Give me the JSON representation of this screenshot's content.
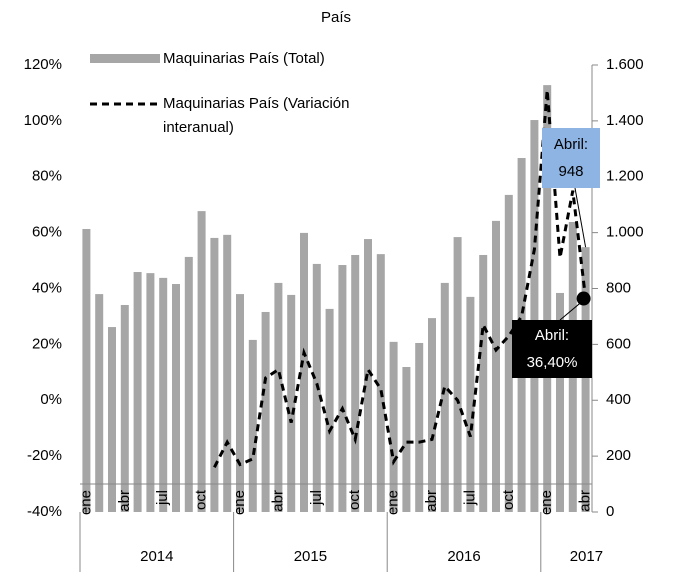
{
  "chart_data": {
    "type": "bar-line",
    "title": "País",
    "categories": [
      "ene",
      null,
      null,
      "abr",
      null,
      null,
      "jul",
      null,
      null,
      "oct",
      null,
      null,
      "ene",
      null,
      null,
      "abr",
      null,
      null,
      "jul",
      null,
      null,
      "oct",
      null,
      null,
      "ene",
      null,
      null,
      "abr",
      null,
      null,
      "jul",
      null,
      null,
      "oct",
      null,
      null,
      "ene",
      null,
      null,
      "abr"
    ],
    "groups": [
      "2014",
      "2015",
      "2016",
      "2017"
    ],
    "series": [
      {
        "name": "Maquinarias País (Total)",
        "color": "#a6a6a6",
        "axis": "y2",
        "values": [
          1013,
          780,
          662,
          741,
          859,
          855,
          838,
          816,
          913,
          1077,
          981,
          992,
          780,
          616,
          716,
          820,
          777,
          999,
          888,
          727,
          884,
          920,
          977,
          923,
          609,
          519,
          605,
          694,
          820,
          984,
          770,
          920,
          1042,
          1135,
          1267,
          1403,
          1528,
          784,
          1038,
          948
        ]
      },
      {
        "name": "Maquinarias País (Variación interanual)",
        "color": "#000000",
        "axis": "y",
        "values": [
          null,
          null,
          null,
          null,
          null,
          null,
          null,
          null,
          null,
          null,
          -24,
          -15,
          -23,
          -21,
          8,
          11,
          -8,
          17,
          6,
          -11,
          -3,
          -14,
          11,
          4,
          -22,
          -15,
          -15,
          -14,
          5,
          0,
          -13,
          27,
          18,
          23,
          30,
          54,
          111,
          51,
          75,
          36.4
        ]
      }
    ],
    "annotations": [
      [
        "Abril:",
        "948"
      ],
      [
        "Abril:",
        "36,40%"
      ]
    ],
    "ylim": [
      -40,
      120
    ],
    "yticks": [
      {
        "value": -40,
        "label": "-40%"
      },
      {
        "value": -20,
        "label": "-20%"
      },
      {
        "value": 0,
        "label": "0%"
      },
      {
        "value": 20,
        "label": "20%"
      },
      {
        "value": 40,
        "label": "40%"
      },
      {
        "value": 60,
        "label": "60%"
      },
      {
        "value": 80,
        "label": "80%"
      },
      {
        "value": 100,
        "label": "100%"
      },
      {
        "value": 120,
        "label": "120%"
      }
    ],
    "y2lim": [
      0,
      1600
    ],
    "y2ticks": [
      0,
      200,
      400,
      600,
      800,
      {
        "value": 1000,
        "label": "1.000"
      },
      {
        "value": 1200,
        "label": "1.200"
      },
      {
        "value": 1400,
        "label": "1.400"
      },
      {
        "value": 1600,
        "label": "1.600"
      }
    ]
  }
}
